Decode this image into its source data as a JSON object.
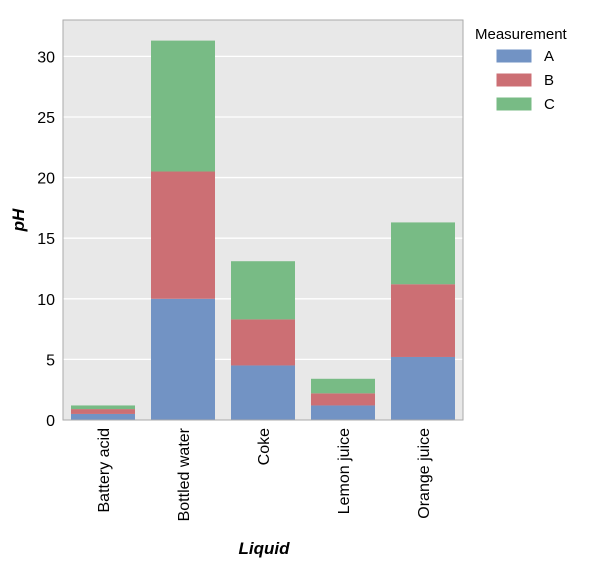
{
  "chart_data": {
    "type": "bar",
    "stacked": true,
    "categories": [
      "Battery acid",
      "Bottled water",
      "Coke",
      "Lemon juice",
      "Orange juice"
    ],
    "series": [
      {
        "name": "A",
        "values": [
          0.5,
          10.0,
          4.5,
          1.2,
          5.2
        ],
        "color": "#7293c4"
      },
      {
        "name": "B",
        "values": [
          0.4,
          10.5,
          3.8,
          1.0,
          6.0
        ],
        "color": "#cc6f74"
      },
      {
        "name": "C",
        "values": [
          0.3,
          10.8,
          4.8,
          1.2,
          5.1
        ],
        "color": "#78bb85"
      }
    ],
    "xlabel": "Liquid",
    "ylabel": "pH",
    "ylim": [
      0,
      33
    ],
    "yticks": [
      0,
      5,
      10,
      15,
      20,
      25,
      30
    ],
    "grid": true,
    "plot_background": "#e8e8e8",
    "legend": {
      "title": "Measurement",
      "placement": "outside-right-top"
    }
  }
}
